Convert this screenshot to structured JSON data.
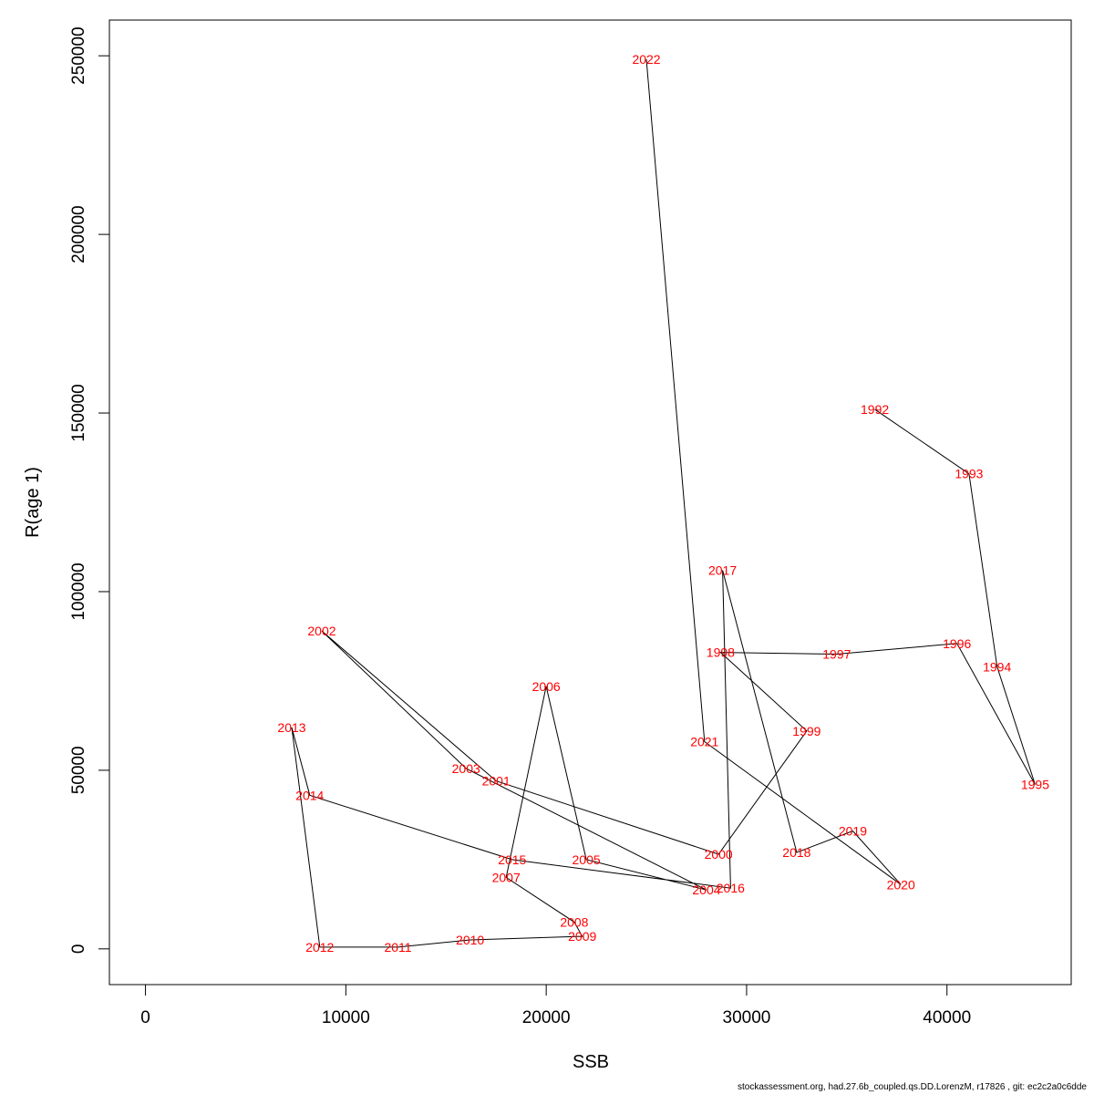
{
  "chart_data": {
    "type": "scatter",
    "xlabel": "SSB",
    "ylabel": "R(age 1)",
    "xlim": [
      -1800,
      46200
    ],
    "ylim": [
      -10000,
      260000
    ],
    "x_ticks": [
      0,
      10000,
      20000,
      30000,
      40000
    ],
    "y_ticks": [
      0,
      50000,
      100000,
      150000,
      200000,
      250000
    ],
    "connected": true,
    "line_color": "#000000",
    "label_color": "#ff0000",
    "points": [
      {
        "year": "1992",
        "x": 36400,
        "y": 151000
      },
      {
        "year": "1993",
        "x": 41100,
        "y": 133000
      },
      {
        "year": "1994",
        "x": 42500,
        "y": 79000
      },
      {
        "year": "1995",
        "x": 44400,
        "y": 46000
      },
      {
        "year": "1996",
        "x": 40500,
        "y": 85500
      },
      {
        "year": "1997",
        "x": 34500,
        "y": 82500
      },
      {
        "year": "1998",
        "x": 28700,
        "y": 83000
      },
      {
        "year": "1999",
        "x": 33000,
        "y": 61000
      },
      {
        "year": "2000",
        "x": 28600,
        "y": 26500
      },
      {
        "year": "2001",
        "x": 17500,
        "y": 47000
      },
      {
        "year": "2002",
        "x": 8800,
        "y": 89000
      },
      {
        "year": "2003",
        "x": 16000,
        "y": 50500
      },
      {
        "year": "2004",
        "x": 28000,
        "y": 16500
      },
      {
        "year": "2005",
        "x": 22000,
        "y": 25000
      },
      {
        "year": "2006",
        "x": 20000,
        "y": 73500
      },
      {
        "year": "2007",
        "x": 18000,
        "y": 20000
      },
      {
        "year": "2008",
        "x": 21400,
        "y": 7500
      },
      {
        "year": "2009",
        "x": 21800,
        "y": 3500
      },
      {
        "year": "2010",
        "x": 16200,
        "y": 2500
      },
      {
        "year": "2011",
        "x": 12600,
        "y": 500
      },
      {
        "year": "2012",
        "x": 8700,
        "y": 500
      },
      {
        "year": "2013",
        "x": 7300,
        "y": 62000
      },
      {
        "year": "2014",
        "x": 8200,
        "y": 43000
      },
      {
        "year": "2015",
        "x": 18300,
        "y": 25000
      },
      {
        "year": "2016",
        "x": 29200,
        "y": 17000
      },
      {
        "year": "2017",
        "x": 28800,
        "y": 106000
      },
      {
        "year": "2018",
        "x": 32500,
        "y": 27000
      },
      {
        "year": "2019",
        "x": 35300,
        "y": 33000
      },
      {
        "year": "2020",
        "x": 37700,
        "y": 18000
      },
      {
        "year": "2021",
        "x": 27900,
        "y": 58000
      },
      {
        "year": "2022",
        "x": 25000,
        "y": 249000
      }
    ]
  },
  "footer_text": "stockassessment.org, had.27.6b_coupled.qs.DD.LorenzM, r17826 , git: ec2c2a0c6dde"
}
